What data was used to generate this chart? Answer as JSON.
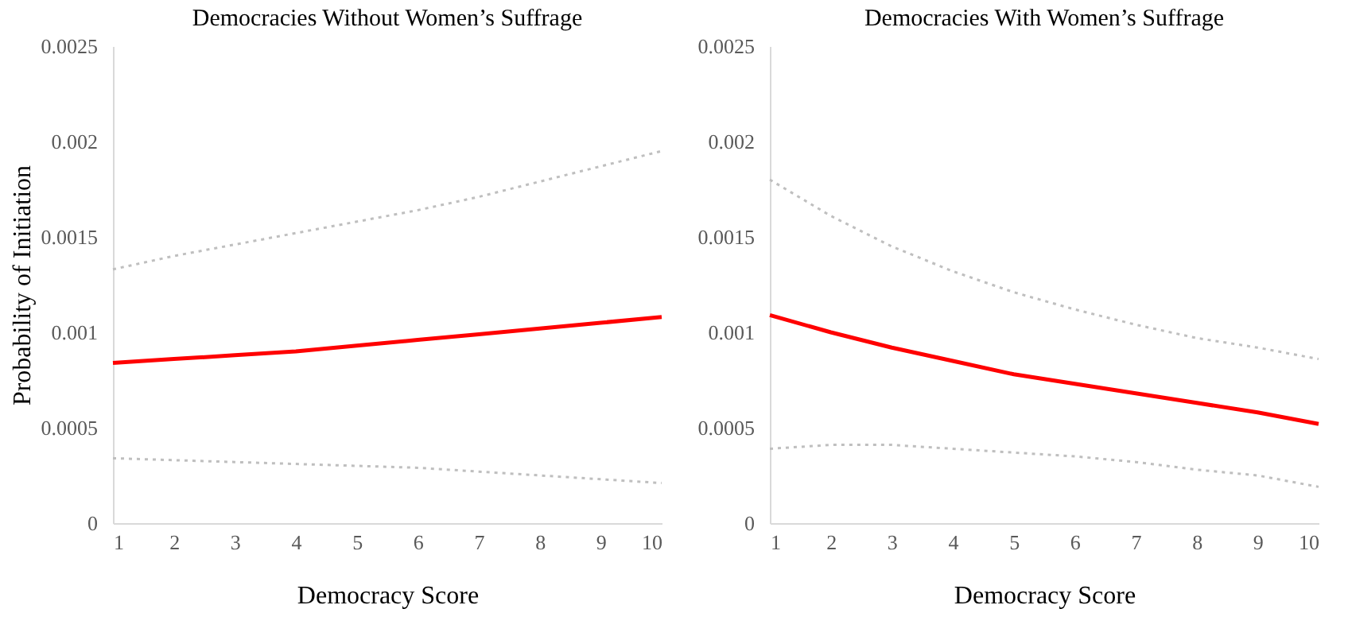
{
  "chart_data": [
    {
      "type": "line",
      "title": "Democracies Without Women’s Suffrage",
      "xlabel": "Democracy Score",
      "ylabel": "Probability of Initiation",
      "x": [
        1,
        2,
        3,
        4,
        5,
        6,
        7,
        8,
        9,
        10
      ],
      "xlim": [
        1,
        10
      ],
      "xticks": [
        1,
        2,
        3,
        4,
        5,
        6,
        7,
        8,
        9,
        10
      ],
      "ylim": [
        0,
        0.0025
      ],
      "yticks": [
        0,
        0.0005,
        0.001,
        0.0015,
        0.002,
        0.0025
      ],
      "grid": false,
      "series": [
        {
          "color": "#bfbfbf",
          "line_style": "dotted",
          "values": [
            0.00133,
            0.0014,
            0.00146,
            0.00152,
            0.00158,
            0.00164,
            0.00171,
            0.00179,
            0.00187,
            0.00195
          ]
        },
        {
          "color": "#ff0000",
          "line_style": "solid",
          "values": [
            0.00084,
            0.00086,
            0.00088,
            0.0009,
            0.00093,
            0.00096,
            0.00099,
            0.00102,
            0.00105,
            0.00108
          ]
        },
        {
          "color": "#bfbfbf",
          "line_style": "dotted",
          "values": [
            0.00034,
            0.00033,
            0.00032,
            0.00031,
            0.0003,
            0.00029,
            0.00027,
            0.00025,
            0.00023,
            0.00021
          ]
        }
      ]
    },
    {
      "type": "line",
      "title": "Democracies With Women’s Suffrage",
      "xlabel": "Democracy Score",
      "x": [
        1,
        2,
        3,
        4,
        5,
        6,
        7,
        8,
        9,
        10
      ],
      "xlim": [
        1,
        10
      ],
      "xticks": [
        1,
        2,
        3,
        4,
        5,
        6,
        7,
        8,
        9,
        10
      ],
      "ylim": [
        0,
        0.0025
      ],
      "yticks": [
        0,
        0.0005,
        0.001,
        0.0015,
        0.002,
        0.0025
      ],
      "grid": false,
      "series": [
        {
          "color": "#bfbfbf",
          "line_style": "dotted",
          "values": [
            0.0018,
            0.00161,
            0.00145,
            0.00132,
            0.00121,
            0.00112,
            0.00104,
            0.00097,
            0.00092,
            0.00086
          ]
        },
        {
          "color": "#ff0000",
          "line_style": "solid",
          "values": [
            0.00109,
            0.001,
            0.00092,
            0.00085,
            0.00078,
            0.00073,
            0.00068,
            0.00063,
            0.00058,
            0.00052
          ]
        },
        {
          "color": "#bfbfbf",
          "line_style": "dotted",
          "values": [
            0.00039,
            0.00041,
            0.00041,
            0.00039,
            0.00037,
            0.00035,
            0.00032,
            0.00028,
            0.00025,
            0.00019
          ]
        }
      ]
    }
  ]
}
